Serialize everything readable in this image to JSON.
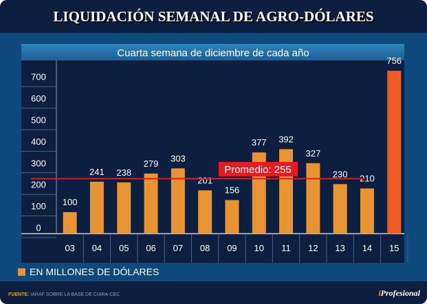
{
  "title": "LIQUIDACIÓN SEMANAL DE AGRO-DÓLARES",
  "legend": "EN MILLONES DE DÓLARES",
  "footer": {
    "label": "FUENTE:",
    "text": "IARAF SOBRE LA BASE DE CIARA-CEC"
  },
  "logo": "iProfesional",
  "colors": {
    "bar": "#e89433",
    "highlight": "#f05a23",
    "average": "#e31b23"
  },
  "chart_data": {
    "type": "bar",
    "title": "Cuarta semana de diciembre de cada año",
    "categories": [
      "03",
      "04",
      "05",
      "06",
      "07",
      "08",
      "09",
      "10",
      "11",
      "12",
      "13",
      "14",
      "15"
    ],
    "values": [
      100,
      241,
      238,
      279,
      303,
      201,
      156,
      377,
      392,
      327,
      230,
      210,
      756
    ],
    "yticks": [
      0,
      100,
      200,
      300,
      400,
      500,
      600,
      700
    ],
    "ylim": [
      0,
      760
    ],
    "average": {
      "label": "Promedio: 255",
      "value": 255
    },
    "grid": false
  }
}
